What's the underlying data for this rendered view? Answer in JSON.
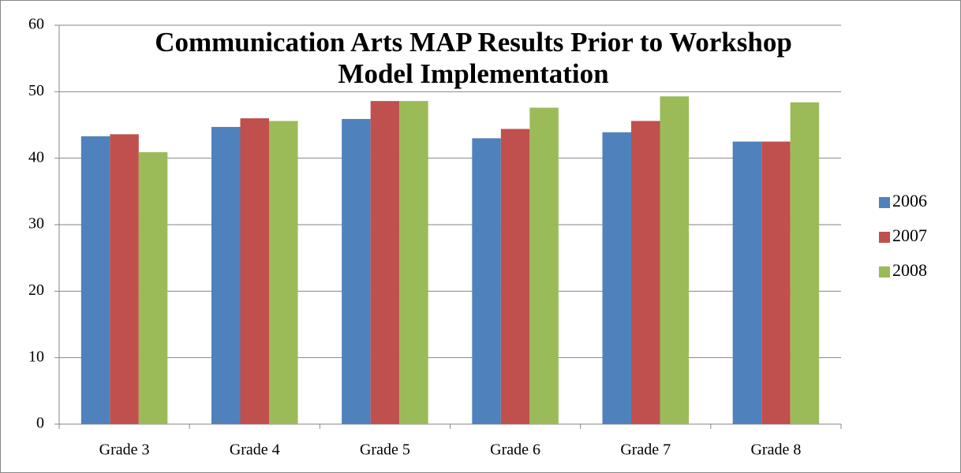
{
  "chart_data": {
    "type": "bar",
    "title": "Communication Arts MAP Results Prior to Workshop Model Implementation",
    "categories": [
      "Grade 3",
      "Grade 4",
      "Grade 5",
      "Grade 6",
      "Grade 7",
      "Grade 8"
    ],
    "series": [
      {
        "name": "2006",
        "color": "#4f81bd",
        "values": [
          43.3,
          44.7,
          45.9,
          43.0,
          43.9,
          42.5
        ]
      },
      {
        "name": "2007",
        "color": "#c0504d",
        "values": [
          43.6,
          46.0,
          48.6,
          44.4,
          45.6,
          42.5
        ]
      },
      {
        "name": "2008",
        "color": "#9bbb59",
        "values": [
          40.9,
          45.6,
          48.6,
          47.6,
          49.3,
          48.4
        ]
      }
    ],
    "ylim": [
      0,
      60
    ],
    "yticks": [
      0,
      10,
      20,
      30,
      40,
      50,
      60
    ],
    "grid": true,
    "legend": "right"
  }
}
